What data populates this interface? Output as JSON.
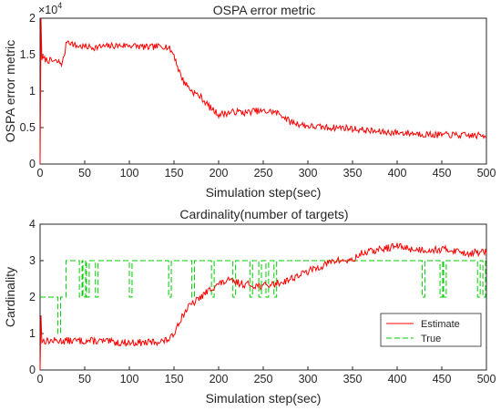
{
  "chart_data": [
    {
      "type": "line",
      "title": "OSPA error metric",
      "xlabel": "Simulation step(sec)",
      "ylabel": "OSPA error metric",
      "xlim": [
        0,
        500
      ],
      "ylim": [
        0,
        20000
      ],
      "exponent_label": "×10",
      "exponent_power": "4",
      "x_ticks": [
        "0",
        "50",
        "100",
        "150",
        "200",
        "250",
        "300",
        "350",
        "400",
        "450",
        "500"
      ],
      "y_ticks": [
        "0",
        "0.5",
        "1",
        "1.5",
        "2"
      ],
      "grid": false,
      "series": [
        {
          "color": "#ff0000",
          "style": "solid",
          "keypoints": [
            [
              0,
              0
            ],
            [
              1,
              20000
            ],
            [
              2,
              14500
            ],
            [
              10,
              14200
            ],
            [
              20,
              14000
            ],
            [
              25,
              13800
            ],
            [
              28,
              15500
            ],
            [
              30,
              17000
            ],
            [
              40,
              16200
            ],
            [
              60,
              16000
            ],
            [
              80,
              16200
            ],
            [
              100,
              16300
            ],
            [
              120,
              16000
            ],
            [
              140,
              16200
            ],
            [
              145,
              15800
            ],
            [
              150,
              15000
            ],
            [
              155,
              13000
            ],
            [
              160,
              11500
            ],
            [
              170,
              10000
            ],
            [
              180,
              9200
            ],
            [
              190,
              7800
            ],
            [
              200,
              6800
            ],
            [
              210,
              7000
            ],
            [
              220,
              7200
            ],
            [
              230,
              7000
            ],
            [
              240,
              7300
            ],
            [
              250,
              7200
            ],
            [
              260,
              7200
            ],
            [
              270,
              6800
            ],
            [
              280,
              5800
            ],
            [
              290,
              5500
            ],
            [
              300,
              5200
            ],
            [
              320,
              5000
            ],
            [
              340,
              5000
            ],
            [
              360,
              4700
            ],
            [
              380,
              4400
            ],
            [
              400,
              4300
            ],
            [
              420,
              4200
            ],
            [
              440,
              4000
            ],
            [
              460,
              4000
            ],
            [
              480,
              3900
            ],
            [
              500,
              3900
            ]
          ],
          "noise": 450,
          "noise_seed": 7
        }
      ]
    },
    {
      "type": "line",
      "title": "Cardinality(number of targets)",
      "xlabel": "Simulation step(sec)",
      "ylabel": "Cardinality",
      "xlim": [
        0,
        500
      ],
      "ylim": [
        0,
        4
      ],
      "x_ticks": [
        "0",
        "50",
        "100",
        "150",
        "200",
        "250",
        "300",
        "350",
        "400",
        "450",
        "500"
      ],
      "y_ticks": [
        "0",
        "1",
        "2",
        "3",
        "4"
      ],
      "grid": false,
      "legend": {
        "position": "bottom-right",
        "entries": [
          "Estimate",
          "True"
        ]
      },
      "series": [
        {
          "name": "Estimate",
          "color": "#ff0000",
          "style": "solid",
          "keypoints": [
            [
              0,
              0
            ],
            [
              1,
              1.5
            ],
            [
              2,
              0.8
            ],
            [
              30,
              0.8
            ],
            [
              60,
              0.8
            ],
            [
              90,
              0.75
            ],
            [
              120,
              0.75
            ],
            [
              140,
              0.8
            ],
            [
              148,
              0.9
            ],
            [
              155,
              1.3
            ],
            [
              165,
              1.7
            ],
            [
              180,
              2.0
            ],
            [
              195,
              2.3
            ],
            [
              210,
              2.45
            ],
            [
              230,
              2.35
            ],
            [
              250,
              2.3
            ],
            [
              270,
              2.4
            ],
            [
              290,
              2.6
            ],
            [
              310,
              2.8
            ],
            [
              330,
              3.0
            ],
            [
              350,
              3.0
            ],
            [
              360,
              3.2
            ],
            [
              380,
              3.3
            ],
            [
              400,
              3.4
            ],
            [
              420,
              3.3
            ],
            [
              440,
              3.3
            ],
            [
              460,
              3.3
            ],
            [
              480,
              3.2
            ],
            [
              500,
              3.25
            ]
          ],
          "noise": 0.1,
          "noise_seed": 13
        },
        {
          "name": "True",
          "color": "#00cc00",
          "style": "dashed",
          "steps": [
            [
              0,
              2
            ],
            [
              20,
              1
            ],
            [
              21,
              2
            ],
            [
              22,
              2
            ],
            [
              23,
              2
            ],
            [
              24,
              2
            ],
            [
              25,
              2
            ],
            [
              26,
              2
            ],
            [
              27,
              2
            ],
            [
              28,
              2
            ],
            [
              29,
              3
            ]
          ],
          "dips_to_2": [
            [
              44,
              46
            ],
            [
              48,
              50
            ],
            [
              52,
              54
            ],
            [
              62,
              64
            ],
            [
              100,
              102
            ],
            [
              144,
              146
            ],
            [
              170,
              172
            ],
            [
              192,
              194
            ],
            [
              216,
              218
            ],
            [
              235,
              237
            ],
            [
              245,
              247
            ],
            [
              253,
              255
            ],
            [
              262,
              264
            ],
            [
              428,
              430
            ],
            [
              448,
              450
            ],
            [
              452,
              454
            ],
            [
              490,
              492
            ],
            [
              496,
              498
            ]
          ],
          "spikes_to_1": [
            [
              20,
              22
            ]
          ],
          "base_level": 3
        }
      ]
    }
  ]
}
